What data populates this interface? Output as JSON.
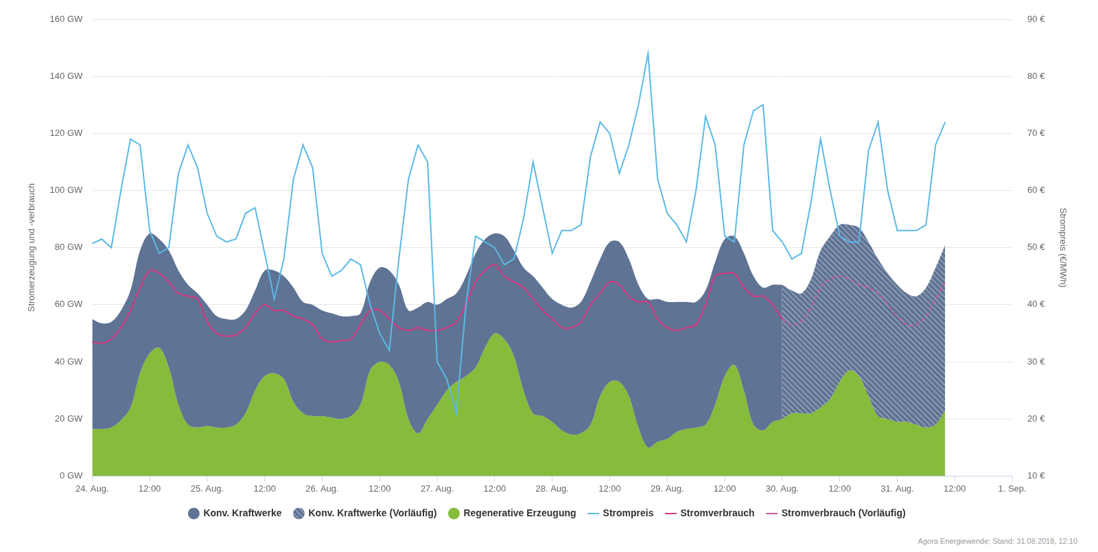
{
  "chart_data": {
    "type": "line",
    "y_label": "Stromerzeugung und -verbrauch",
    "y2_label": "Strompreis (€/MWh)",
    "annotations": [
      "Agora Energiewende; Stand: 31.08.2018, 12:10"
    ],
    "stacked": true,
    "grid": true,
    "legend": "bottom",
    "categories": [
      "24. Aug.",
      null,
      null,
      null,
      null,
      null,
      "12:00",
      null,
      null,
      null,
      null,
      null,
      "25. Aug.",
      null,
      null,
      null,
      null,
      null,
      "12:00",
      null,
      null,
      null,
      null,
      null,
      "26. Aug.",
      null,
      null,
      null,
      null,
      null,
      "12:00",
      null,
      null,
      null,
      null,
      null,
      "27. Aug.",
      null,
      null,
      null,
      null,
      null,
      "12:00",
      null,
      null,
      null,
      null,
      null,
      "28. Aug.",
      null,
      null,
      null,
      null,
      null,
      "12:00",
      null,
      null,
      null,
      null,
      null,
      "29. Aug.",
      null,
      null,
      null,
      null,
      null,
      "12:00",
      null,
      null,
      null,
      null,
      null,
      "30. Aug.",
      null,
      null,
      null,
      null,
      null,
      "12:00",
      null,
      null,
      null,
      null,
      null,
      "31. Aug.",
      null,
      null,
      null,
      null,
      null,
      "12:00",
      null,
      null,
      null,
      null,
      null,
      "1. Sep."
    ],
    "series": [
      {
        "name": "Konv. Kraftwerke",
        "type": "area",
        "color": "#5f7394",
        "line_style": "solid",
        "values": [
          38.5,
          37,
          37,
          38.5,
          41,
          43,
          42,
          38,
          41,
          47,
          49,
          47,
          42.5,
          39,
          38,
          37,
          36,
          35,
          37,
          36,
          36,
          40,
          39,
          39,
          37,
          36.5,
          36,
          35,
          32,
          31,
          33,
          33,
          34,
          38,
          44,
          41,
          35,
          32,
          31,
          35,
          40,
          38,
          35,
          36,
          37,
          43,
          48,
          45,
          43,
          44,
          44.5,
          46,
          50,
          48,
          49,
          49,
          48,
          50,
          52,
          50,
          48,
          45.5,
          44.5,
          44,
          47,
          50,
          48,
          45,
          48,
          52,
          50,
          48,
          47,
          null,
          null,
          null,
          null,
          null,
          null,
          null,
          null,
          null,
          null,
          null,
          null,
          null,
          null,
          null,
          null,
          null,
          null,
          null,
          null,
          null,
          null,
          null,
          null
        ]
      },
      {
        "name": "Konv. Kraftwerke (Vorläufig)",
        "type": "area",
        "color": "#5f7394",
        "line_style": "hatched",
        "values": [
          null,
          null,
          null,
          null,
          null,
          null,
          null,
          null,
          null,
          null,
          null,
          null,
          null,
          null,
          null,
          null,
          null,
          null,
          null,
          null,
          null,
          null,
          null,
          null,
          null,
          null,
          null,
          null,
          null,
          null,
          null,
          null,
          null,
          null,
          null,
          null,
          null,
          null,
          null,
          null,
          null,
          null,
          null,
          null,
          null,
          null,
          null,
          null,
          null,
          null,
          null,
          null,
          null,
          null,
          null,
          null,
          null,
          null,
          null,
          null,
          null,
          null,
          null,
          null,
          null,
          null,
          null,
          null,
          null,
          null,
          null,
          null,
          47,
          43,
          42,
          47,
          55,
          57,
          55,
          51,
          52,
          54,
          55,
          51,
          48,
          45,
          45,
          49,
          55,
          58,
          null,
          null,
          null,
          null,
          null,
          null,
          null
        ]
      },
      {
        "name": "Regenerative Erzeugung",
        "type": "area",
        "color": "#86bb3b",
        "line_style": "solid",
        "values": [
          16.5,
          16.5,
          17,
          19.5,
          24,
          36,
          43,
          45,
          38,
          25,
          18,
          17,
          17.5,
          17,
          17,
          18,
          22,
          30,
          35,
          36,
          34,
          26,
          22,
          21,
          21,
          20.5,
          20,
          21,
          25,
          37,
          40,
          39,
          33,
          20,
          15,
          20,
          25,
          30,
          33,
          35,
          38,
          45,
          50,
          48,
          42,
          30,
          22,
          21,
          19,
          16,
          14.5,
          15,
          18,
          28,
          33,
          33,
          28,
          17,
          10,
          12,
          13,
          15.5,
          16.5,
          17,
          18,
          25,
          35,
          39,
          30,
          18,
          16,
          19,
          20,
          22,
          22,
          22,
          24,
          27,
          33,
          37,
          35,
          28,
          21,
          20,
          19,
          19,
          18,
          17,
          18,
          23,
          null,
          null,
          null,
          null,
          null,
          null,
          null
        ]
      },
      {
        "name": "Strompreis",
        "type": "line",
        "color": "#5ab9e6",
        "line_style": "solid",
        "axis": "y2",
        "values": [
          50.7,
          51.5,
          50,
          60,
          69,
          68,
          53,
          49,
          50,
          63,
          68,
          64,
          56,
          52,
          51,
          51.5,
          56,
          57,
          49,
          41,
          48,
          62,
          68,
          64,
          49,
          45,
          46,
          48,
          47,
          40,
          35,
          32,
          48,
          62,
          68,
          65,
          30,
          27,
          21,
          40,
          52,
          51,
          50,
          47,
          48,
          55,
          65,
          57,
          49,
          53,
          53,
          54,
          66,
          72,
          70,
          63,
          68,
          75,
          84,
          62,
          56,
          54,
          51,
          60,
          73,
          68,
          52,
          51,
          68,
          74,
          75,
          53,
          51,
          48,
          49,
          58,
          69,
          60,
          52,
          51,
          51,
          67,
          72,
          60,
          53,
          53,
          53,
          54,
          68,
          72,
          null,
          null,
          null,
          null,
          null,
          null,
          null
        ]
      },
      {
        "name": "Stromverbrauch",
        "type": "line",
        "color": "#d6357f",
        "line_style": "solid",
        "values": [
          47,
          46.5,
          48,
          52,
          58,
          66,
          72,
          71,
          68,
          64,
          63,
          62,
          54,
          50,
          49,
          49.5,
          52,
          57,
          60,
          58,
          58,
          56,
          55,
          53,
          48,
          47,
          47.5,
          48,
          53,
          58,
          58,
          55,
          52,
          51,
          52,
          51,
          51,
          52,
          54,
          60,
          68,
          72,
          74,
          70,
          68,
          66,
          62,
          58,
          55,
          52,
          52,
          54,
          60,
          64,
          68,
          67,
          63,
          61,
          61,
          55,
          52,
          51,
          52,
          53,
          60,
          70,
          71,
          71,
          66,
          63,
          63,
          60,
          55,
          null,
          null,
          null,
          null,
          null,
          null,
          null,
          null,
          null,
          null,
          null,
          null,
          null,
          null,
          null,
          null,
          null,
          null,
          null,
          null,
          null,
          null,
          null,
          null
        ]
      },
      {
        "name": "Stromverbrauch (Vorläufig)",
        "type": "line",
        "color": "#c95c9e",
        "line_style": "dashed",
        "values": [
          null,
          null,
          null,
          null,
          null,
          null,
          null,
          null,
          null,
          null,
          null,
          null,
          null,
          null,
          null,
          null,
          null,
          null,
          null,
          null,
          null,
          null,
          null,
          null,
          null,
          null,
          null,
          null,
          null,
          null,
          null,
          null,
          null,
          null,
          null,
          null,
          null,
          null,
          null,
          null,
          null,
          null,
          null,
          null,
          null,
          null,
          null,
          null,
          null,
          null,
          null,
          null,
          null,
          null,
          null,
          null,
          null,
          null,
          null,
          null,
          null,
          null,
          null,
          null,
          null,
          null,
          null,
          null,
          null,
          null,
          null,
          null,
          55,
          53,
          54,
          59,
          66,
          69,
          70,
          69,
          67,
          66,
          64,
          60,
          56,
          53,
          53,
          56,
          62,
          68,
          null,
          null,
          null,
          null,
          null,
          null,
          null
        ]
      }
    ],
    "ylim": [
      0,
      160
    ],
    "yticks": [
      {
        "value": 0,
        "label": "0 GW"
      },
      {
        "value": 20,
        "label": "20 GW"
      },
      {
        "value": 40,
        "label": "40 GW"
      },
      {
        "value": 60,
        "label": "60 GW"
      },
      {
        "value": 80,
        "label": "80 GW"
      },
      {
        "value": 100,
        "label": "100 GW"
      },
      {
        "value": 120,
        "label": "120 GW"
      },
      {
        "value": 140,
        "label": "140 GW"
      },
      {
        "value": 160,
        "label": "160 GW"
      }
    ],
    "y2lim": [
      10,
      90
    ],
    "y2ticks": [
      {
        "value": 10,
        "label": "10 €"
      },
      {
        "value": 20,
        "label": "20 €"
      },
      {
        "value": 30,
        "label": "30 €"
      },
      {
        "value": 40,
        "label": "40 €"
      },
      {
        "value": 50,
        "label": "50 €"
      },
      {
        "value": 60,
        "label": "60 €"
      },
      {
        "value": 70,
        "label": "70 €"
      },
      {
        "value": 80,
        "label": "80 €"
      },
      {
        "value": 90,
        "label": "90 €"
      }
    ]
  }
}
